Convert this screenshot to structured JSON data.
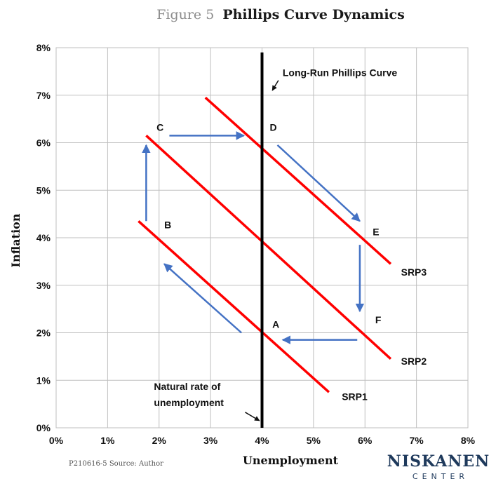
{
  "title": {
    "figure": "Figure 5",
    "main": "Phillips Curve Dynamics"
  },
  "chart_data": {
    "type": "line",
    "xlabel": "Unemployment",
    "ylabel": "Inflation",
    "xlim": [
      0,
      8
    ],
    "ylim": [
      0,
      8
    ],
    "x_ticks": [
      "0%",
      "1%",
      "2%",
      "3%",
      "4%",
      "5%",
      "6%",
      "7%",
      "8%"
    ],
    "y_ticks": [
      "0%",
      "1%",
      "2%",
      "3%",
      "4%",
      "5%",
      "6%",
      "7%",
      "8%"
    ],
    "grid": true,
    "series": [
      {
        "name": "SRP1",
        "color": "#ff0000",
        "x": [
          1.6,
          5.3
        ],
        "y": [
          4.35,
          0.75
        ]
      },
      {
        "name": "SRP2",
        "color": "#ff0000",
        "x": [
          1.75,
          6.5
        ],
        "y": [
          6.15,
          1.45
        ]
      },
      {
        "name": "SRP3",
        "color": "#ff0000",
        "x": [
          2.9,
          6.5
        ],
        "y": [
          6.95,
          3.45
        ]
      },
      {
        "name": "Long-Run Phillips Curve",
        "color": "#000000",
        "x": [
          4,
          4
        ],
        "y": [
          0,
          7.9
        ]
      }
    ],
    "points": [
      {
        "label": "A",
        "x": 4.2,
        "y": 2.1
      },
      {
        "label": "B",
        "x": 2.1,
        "y": 4.2
      },
      {
        "label": "C",
        "x": 1.95,
        "y": 6.25
      },
      {
        "label": "D",
        "x": 4.15,
        "y": 6.25
      },
      {
        "label": "E",
        "x": 6.15,
        "y": 4.05
      },
      {
        "label": "F",
        "x": 6.2,
        "y": 2.2
      }
    ],
    "arrows": [
      {
        "from": [
          3.6,
          2.0
        ],
        "to": [
          2.1,
          3.45
        ]
      },
      {
        "from": [
          1.75,
          4.35
        ],
        "to": [
          1.75,
          5.95
        ]
      },
      {
        "from": [
          2.2,
          6.15
        ],
        "to": [
          3.65,
          6.15
        ]
      },
      {
        "from": [
          4.3,
          5.95
        ],
        "to": [
          5.9,
          4.35
        ]
      },
      {
        "from": [
          5.9,
          3.85
        ],
        "to": [
          5.9,
          2.45
        ]
      },
      {
        "from": [
          5.85,
          1.85
        ],
        "to": [
          4.4,
          1.85
        ]
      }
    ],
    "annotations": [
      {
        "text": "Long-Run Phillips Curve",
        "x": 4.4,
        "y": 7.4,
        "arrow_to": [
          4.2,
          7.1
        ]
      },
      {
        "text_lines": [
          "Natural rate of",
          "unemployment"
        ],
        "x": 1.9,
        "y": 0.8,
        "arrow_to": [
          3.95,
          0.15
        ]
      }
    ],
    "series_labels": [
      {
        "text": "SRP1",
        "x": 5.55,
        "y": 0.58
      },
      {
        "text": "SRP2",
        "x": 6.7,
        "y": 1.33
      },
      {
        "text": "SRP3",
        "x": 6.7,
        "y": 3.2
      }
    ]
  },
  "footer": {
    "source": "P210616-5 Source: Author"
  },
  "logo": {
    "name": "NISKANEN",
    "sub": "CENTER",
    "color": "#1f3a5c"
  },
  "arrow_color": "#4472c4"
}
